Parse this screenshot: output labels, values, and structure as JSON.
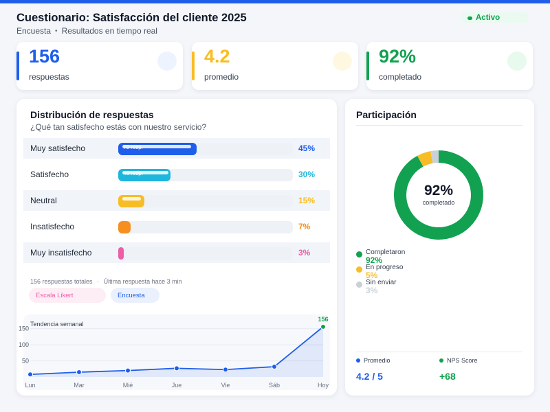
{
  "header": {
    "title": "Cuestionario: Satisfacción del cliente 2025",
    "subtitle_a": "Encuesta",
    "subtitle_sep": "•",
    "subtitle_b": "Resultados en tiempo real",
    "status": "Activo"
  },
  "kpis": [
    {
      "value": "156",
      "label": "respuestas",
      "color": "#1e5eea",
      "tint": "#eef4ff"
    },
    {
      "value": "4.2",
      "label": "promedio",
      "color": "#f7bd26",
      "tint": "#fff8e1"
    },
    {
      "value": "92%",
      "label": "completado",
      "color": "#12a150",
      "tint": "#e8f9ee"
    }
  ],
  "distribution": {
    "title": "Distribución de respuestas",
    "question": "¿Qué tan satisfecho estás con nuestro servicio?",
    "rows": [
      {
        "label": "Muy satisfecho",
        "percent_value": 45,
        "percent": "45%",
        "bar_text": "70 resp.",
        "color": "#1e5eea"
      },
      {
        "label": "Satisfecho",
        "percent_value": 30,
        "percent": "30%",
        "bar_text": "46 resp.",
        "color": "#1db7dd"
      },
      {
        "label": "Neutral",
        "percent_value": 15,
        "percent": "15%",
        "bar_text": "",
        "color": "#f7bd26"
      },
      {
        "label": "Insatisfecho",
        "percent_value": 7,
        "percent": "7%",
        "bar_text": "",
        "color": "#f58f1f"
      },
      {
        "label": "Muy insatisfecho",
        "percent_value": 3,
        "percent": "3%",
        "bar_text": "",
        "color": "#ef5da8"
      }
    ],
    "footer_total": "156 respuestas totales",
    "footer_sep": "·",
    "footer_last": "Última respuesta hace 3 min",
    "chips": [
      {
        "label": "Escala Likert",
        "color": "#ef5da8",
        "bg": "#fdeef5"
      },
      {
        "label": "Encuesta",
        "color": "#1e5eea",
        "bg": "#eaf1fd"
      }
    ]
  },
  "trend": {
    "title": "Tendencia semanal",
    "chart_data": {
      "type": "area",
      "title": "Tendencia semanal",
      "categories": [
        "Lun",
        "Mar",
        "Mié",
        "Jue",
        "Vie",
        "Sáb",
        "Hoy"
      ],
      "values": [
        8,
        15,
        20,
        27,
        23,
        32,
        156
      ],
      "yticks": [
        50,
        100,
        150
      ],
      "ylim": [
        0,
        160
      ],
      "last_label": "156",
      "line_color": "#1e5eea",
      "last_point_color": "#12a150",
      "grid": true
    }
  },
  "participation": {
    "title": "Participación",
    "center_value": "92%",
    "center_label": "completado",
    "chart_data": {
      "type": "pie",
      "donut": true,
      "labels": [
        "Completaron",
        "En progreso",
        "Sin enviar"
      ],
      "values": [
        92,
        5,
        3
      ],
      "colors": [
        "#12a150",
        "#f7bd26",
        "#cbd0d8"
      ]
    },
    "legend": [
      {
        "name": "Completaron",
        "value": "92%",
        "color": "#12a150"
      },
      {
        "name": "En progreso",
        "value": "5%",
        "color": "#f7bd26"
      },
      {
        "name": "Sin enviar",
        "value": "3%",
        "color": "#cbd0d8"
      }
    ],
    "stats": [
      {
        "label": "Promedio",
        "value": "4.2 / 5",
        "color": "#1e5eea"
      },
      {
        "label": "NPS Score",
        "value": "+68",
        "color": "#12a150"
      }
    ]
  }
}
